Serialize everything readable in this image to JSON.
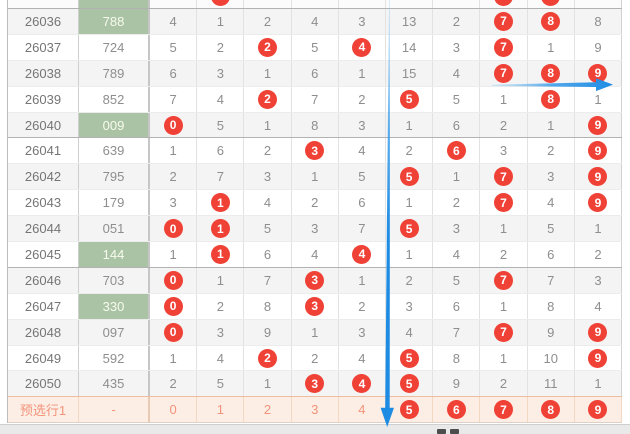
{
  "colors": {
    "hit_circle_red": "#ef4136",
    "highlight_result_green": "#a9c3a4",
    "preselect_row_bg": "#fdeee5",
    "preselect_text": "#f2937b",
    "arrow_blue": "#1f8ce4",
    "alt_row_bg": "#f4f4f4"
  },
  "table": {
    "partial_top_row": {
      "highlight": true,
      "circled_cols": [
        1,
        7,
        8
      ]
    },
    "rows": [
      {
        "period": "26036",
        "result": "788",
        "highlight": true,
        "values": [
          "4",
          "1",
          "2",
          "4",
          "3",
          "13",
          "2",
          "7",
          "8",
          "8"
        ],
        "circled": [
          7,
          8
        ]
      },
      {
        "period": "26037",
        "result": "724",
        "highlight": false,
        "values": [
          "5",
          "2",
          "2",
          "5",
          "4",
          "14",
          "3",
          "7",
          "1",
          "9"
        ],
        "circled": [
          2,
          4,
          7
        ]
      },
      {
        "period": "26038",
        "result": "789",
        "highlight": false,
        "values": [
          "6",
          "3",
          "1",
          "6",
          "1",
          "15",
          "4",
          "7",
          "8",
          "9"
        ],
        "circled": [
          7,
          8,
          9
        ]
      },
      {
        "period": "26039",
        "result": "852",
        "highlight": false,
        "values": [
          "7",
          "4",
          "2",
          "7",
          "2",
          "5",
          "5",
          "1",
          "8",
          "1"
        ],
        "circled": [
          2,
          5,
          8
        ]
      },
      {
        "period": "26040",
        "result": "009",
        "highlight": true,
        "values": [
          "0",
          "5",
          "1",
          "8",
          "3",
          "1",
          "6",
          "2",
          "1",
          "9"
        ],
        "circled": [
          0,
          9
        ]
      },
      {
        "period": "26041",
        "result": "639",
        "highlight": false,
        "values": [
          "1",
          "6",
          "2",
          "3",
          "4",
          "2",
          "6",
          "3",
          "2",
          "9"
        ],
        "circled": [
          3,
          6,
          9
        ]
      },
      {
        "period": "26042",
        "result": "795",
        "highlight": false,
        "values": [
          "2",
          "7",
          "3",
          "1",
          "5",
          "5",
          "1",
          "7",
          "3",
          "9"
        ],
        "circled": [
          5,
          7,
          9
        ]
      },
      {
        "period": "26043",
        "result": "179",
        "highlight": false,
        "values": [
          "3",
          "1",
          "4",
          "2",
          "6",
          "1",
          "2",
          "7",
          "4",
          "9"
        ],
        "circled": [
          1,
          7,
          9
        ]
      },
      {
        "period": "26044",
        "result": "051",
        "highlight": false,
        "values": [
          "0",
          "1",
          "5",
          "3",
          "7",
          "5",
          "3",
          "1",
          "5",
          "1"
        ],
        "circled": [
          0,
          1,
          5
        ]
      },
      {
        "period": "26045",
        "result": "144",
        "highlight": true,
        "values": [
          "1",
          "1",
          "6",
          "4",
          "4",
          "1",
          "4",
          "2",
          "6",
          "2"
        ],
        "circled": [
          1,
          4
        ]
      },
      {
        "period": "26046",
        "result": "703",
        "highlight": false,
        "values": [
          "0",
          "1",
          "7",
          "3",
          "1",
          "2",
          "5",
          "7",
          "7",
          "3"
        ],
        "circled": [
          0,
          3,
          7
        ]
      },
      {
        "period": "26047",
        "result": "330",
        "highlight": true,
        "values": [
          "0",
          "2",
          "8",
          "3",
          "2",
          "3",
          "6",
          "1",
          "8",
          "4"
        ],
        "circled": [
          0,
          3
        ]
      },
      {
        "period": "26048",
        "result": "097",
        "highlight": false,
        "values": [
          "0",
          "3",
          "9",
          "1",
          "3",
          "4",
          "7",
          "7",
          "9",
          "9"
        ],
        "circled": [
          0,
          7,
          9
        ]
      },
      {
        "period": "26049",
        "result": "592",
        "highlight": false,
        "values": [
          "1",
          "4",
          "2",
          "2",
          "4",
          "5",
          "8",
          "1",
          "10",
          "9"
        ],
        "circled": [
          2,
          5,
          9
        ]
      },
      {
        "period": "26050",
        "result": "435",
        "highlight": false,
        "values": [
          "2",
          "5",
          "1",
          "3",
          "4",
          "5",
          "9",
          "2",
          "11",
          "1"
        ],
        "circled": [
          3,
          4,
          5
        ]
      }
    ],
    "preselect_row": {
      "label": "预选行1",
      "result": "-",
      "values": [
        "0",
        "1",
        "2",
        "3",
        "4",
        "5",
        "6",
        "7",
        "8",
        "9"
      ],
      "circled": [
        5,
        6,
        7,
        8,
        9
      ]
    }
  },
  "annotations": {
    "horizontal_arrow": {
      "row": "26038",
      "points_to_column": "9",
      "color": "#1f8ce4"
    },
    "vertical_arrow": {
      "along_column_border": "4|5",
      "ends_at": "preselect-row",
      "color": "#1f8ce4"
    }
  }
}
